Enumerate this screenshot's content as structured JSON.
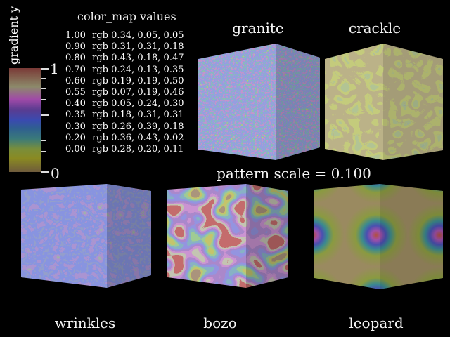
{
  "legend": {
    "axis_label": "gradient y",
    "top_label": "1",
    "bottom_label": "0",
    "table_title": "color_map values",
    "entries": [
      {
        "value": "1.00",
        "rgb": "rgb 0.34, 0.05, 0.05"
      },
      {
        "value": "0.90",
        "rgb": "rgb 0.31, 0.31, 0.18"
      },
      {
        "value": "0.80",
        "rgb": "rgb 0.43, 0.18, 0.47"
      },
      {
        "value": "0.70",
        "rgb": "rgb 0.24, 0.13, 0.35"
      },
      {
        "value": "0.60",
        "rgb": "rgb 0.19, 0.19, 0.50"
      },
      {
        "value": "0.55",
        "rgb": "rgb 0.07, 0.19, 0.46"
      },
      {
        "value": "0.40",
        "rgb": "rgb 0.05, 0.24, 0.30"
      },
      {
        "value": "0.35",
        "rgb": "rgb 0.18, 0.31, 0.31"
      },
      {
        "value": "0.30",
        "rgb": "rgb 0.26, 0.39, 0.18"
      },
      {
        "value": "0.20",
        "rgb": "rgb 0.36, 0.43, 0.02"
      },
      {
        "value": "0.00",
        "rgb": "rgb 0.28, 0.20, 0.11"
      }
    ]
  },
  "caption": "pattern scale = 0.100",
  "patterns": [
    {
      "name": "granite"
    },
    {
      "name": "crackle"
    },
    {
      "name": "wrinkles"
    },
    {
      "name": "bozo"
    },
    {
      "name": "leopard"
    }
  ]
}
